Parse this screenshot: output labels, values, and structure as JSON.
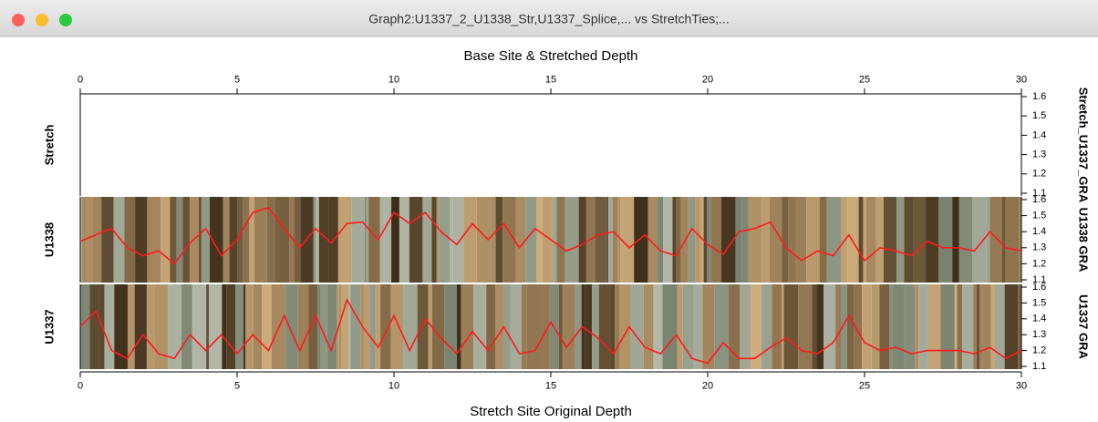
{
  "window_title": "Graph2:U1337_2_U1338_Str,U1337_Splice,... vs StretchTies;...",
  "chart_data": [
    {
      "type": "line",
      "panel_label": "Stretch",
      "x_label": "Base Site & Stretched Depth",
      "y_label": "Stretch_U1337_GRA",
      "xlim": [
        0,
        30
      ],
      "xticks": [
        0,
        5,
        10,
        15,
        20,
        25,
        30
      ],
      "ylim": [
        1.1,
        1.6
      ],
      "yticks": [
        1.1,
        1.2,
        1.3,
        1.4,
        1.5,
        1.6
      ]
    },
    {
      "type": "line",
      "panel_label": "U1338",
      "y_label": "U1338 GRA",
      "xlim": [
        0,
        30
      ],
      "ylim": [
        1.1,
        1.6
      ],
      "yticks": [
        1.1,
        1.2,
        1.3,
        1.4,
        1.5,
        1.6
      ],
      "x": [
        0,
        0.5,
        1,
        1.5,
        2,
        2.5,
        3,
        3.5,
        4,
        4.5,
        5,
        5.5,
        6,
        6.5,
        7,
        7.5,
        8,
        8.5,
        9,
        9.5,
        10,
        10.5,
        11,
        11.5,
        12,
        12.5,
        13,
        13.5,
        14,
        14.5,
        15,
        15.5,
        16,
        16.5,
        17,
        17.5,
        18,
        18.5,
        19,
        19.5,
        20,
        20.5,
        21,
        21.5,
        22,
        22.5,
        23,
        23.5,
        24,
        24.5,
        25,
        25.5,
        26,
        26.5,
        27,
        27.5,
        28,
        28.5,
        29,
        29.5,
        30
      ],
      "series": [
        {
          "color": "#ff1a1a",
          "values": [
            1.34,
            1.38,
            1.42,
            1.3,
            1.25,
            1.28,
            1.2,
            1.33,
            1.42,
            1.25,
            1.35,
            1.52,
            1.55,
            1.42,
            1.3,
            1.42,
            1.33,
            1.45,
            1.46,
            1.35,
            1.52,
            1.45,
            1.52,
            1.4,
            1.32,
            1.45,
            1.35,
            1.45,
            1.3,
            1.42,
            1.35,
            1.28,
            1.32,
            1.38,
            1.4,
            1.3,
            1.38,
            1.28,
            1.25,
            1.42,
            1.32,
            1.26,
            1.4,
            1.42,
            1.46,
            1.3,
            1.22,
            1.28,
            1.25,
            1.38,
            1.22,
            1.3,
            1.28,
            1.25,
            1.34,
            1.3,
            1.3,
            1.28,
            1.4,
            1.3,
            1.28
          ]
        }
      ]
    },
    {
      "type": "line",
      "panel_label": "U1337",
      "x_label": "Stretch Site Original Depth",
      "y_label": "U1337 GRA",
      "xlim": [
        0,
        30
      ],
      "xticks": [
        0,
        5,
        10,
        15,
        20,
        25,
        30
      ],
      "ylim": [
        1.1,
        1.6
      ],
      "yticks": [
        1.1,
        1.2,
        1.3,
        1.4,
        1.5,
        1.6
      ],
      "x": [
        0,
        0.5,
        1,
        1.5,
        2,
        2.5,
        3,
        3.5,
        4,
        4.5,
        5,
        5.5,
        6,
        6.5,
        7,
        7.5,
        8,
        8.5,
        9,
        9.5,
        10,
        10.5,
        11,
        11.5,
        12,
        12.5,
        13,
        13.5,
        14,
        14.5,
        15,
        15.5,
        16,
        16.5,
        17,
        17.5,
        18,
        18.5,
        19,
        19.5,
        20,
        20.5,
        21,
        21.5,
        22,
        22.5,
        23,
        23.5,
        24,
        24.5,
        25,
        25.5,
        26,
        26.5,
        27,
        27.5,
        28,
        28.5,
        29,
        29.5,
        30
      ],
      "series": [
        {
          "color": "#ff1a1a",
          "values": [
            1.35,
            1.45,
            1.2,
            1.15,
            1.3,
            1.18,
            1.15,
            1.3,
            1.2,
            1.3,
            1.18,
            1.3,
            1.2,
            1.42,
            1.2,
            1.42,
            1.2,
            1.52,
            1.35,
            1.22,
            1.42,
            1.2,
            1.4,
            1.28,
            1.18,
            1.32,
            1.2,
            1.35,
            1.18,
            1.2,
            1.38,
            1.22,
            1.35,
            1.28,
            1.18,
            1.35,
            1.22,
            1.18,
            1.3,
            1.15,
            1.12,
            1.25,
            1.15,
            1.15,
            1.22,
            1.28,
            1.2,
            1.18,
            1.25,
            1.42,
            1.25,
            1.2,
            1.22,
            1.18,
            1.2,
            1.2,
            1.2,
            1.18,
            1.22,
            1.15,
            1.2
          ]
        }
      ]
    }
  ]
}
